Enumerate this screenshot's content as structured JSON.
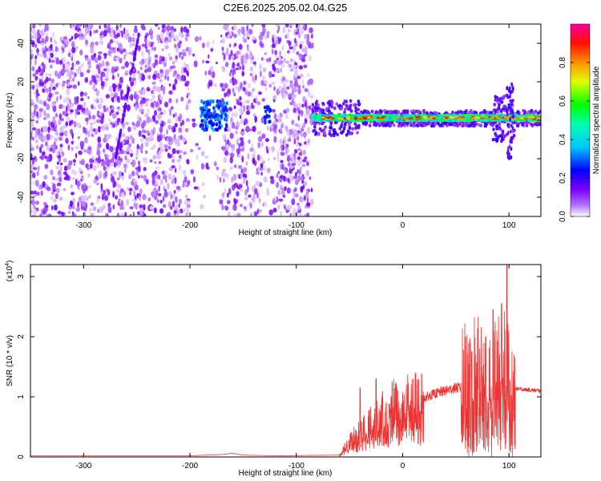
{
  "title": "C2E6.2025.205.02.04.G25",
  "chart_data": [
    {
      "type": "heatmap",
      "title": "C2E6.2025.205.02.04.G25",
      "xlabel": "Height of straight line (km)",
      "ylabel": "Frequency (Hz)",
      "xlim": [
        -350,
        130
      ],
      "ylim": [
        -50,
        50
      ],
      "xticks": [
        -300,
        -200,
        -100,
        0,
        100
      ],
      "yticks": [
        -40,
        -20,
        0,
        20,
        40
      ],
      "colorbar": {
        "label": "Normalized spectral amplitude",
        "range": [
          0,
          1
        ],
        "ticks": [
          0.0,
          0.2,
          0.4,
          0.6,
          0.8
        ],
        "colormap": [
          "#ffffff",
          "#8000ff",
          "#0000ff",
          "#00ffff",
          "#00ff00",
          "#ffff00",
          "#ff8000",
          "#ff0000",
          "#ff00ff"
        ]
      },
      "description_regions": [
        {
          "x": [
            -350,
            -85
          ],
          "y": [
            -50,
            50
          ],
          "amplitude": [
            0.02,
            0.15
          ]
        },
        {
          "x": [
            -190,
            -165
          ],
          "y": [
            -5,
            10
          ],
          "amplitude": [
            0.2,
            0.35
          ]
        },
        {
          "x": [
            -85,
            130
          ],
          "y": [
            -4,
            5
          ],
          "amplitude": [
            0.3,
            1.0
          ]
        }
      ]
    },
    {
      "type": "line",
      "xlabel": "Height of straight line (km)",
      "ylabel": "SNR (10 * v/v)",
      "yscale_label": "(x10",
      "yscale_exp": "4",
      "xlim": [
        -350,
        130
      ],
      "ylim": [
        0,
        3.2
      ],
      "xticks": [
        -300,
        -200,
        -100,
        0,
        100
      ],
      "yticks": [
        0,
        1,
        2,
        3
      ],
      "series_color": "#ee3333",
      "envelope": {
        "x": [
          -350,
          -200,
          -170,
          -160,
          -150,
          -120,
          -60,
          -50,
          -40,
          -30,
          -20,
          -10,
          0,
          10,
          20,
          30,
          40,
          50,
          60,
          70,
          80,
          85,
          90,
          95,
          100,
          103,
          108,
          130
        ],
        "y": [
          0.02,
          0.02,
          0.04,
          0.06,
          0.03,
          0.02,
          0.03,
          0.25,
          0.4,
          0.55,
          0.65,
          0.75,
          0.82,
          0.9,
          0.98,
          1.05,
          1.1,
          1.15,
          1.15,
          1.18,
          1.2,
          1.25,
          1.3,
          1.5,
          1.2,
          1.15,
          1.13,
          1.1
        ]
      },
      "peaks": [
        {
          "x": 98,
          "y": 3.2
        },
        {
          "x": 93,
          "y": 2.55
        },
        {
          "x": 85,
          "y": 2.45
        },
        {
          "x": 78,
          "y": 2.0
        },
        {
          "x": 65,
          "y": 1.75
        },
        {
          "x": -25,
          "y": 1.3
        },
        {
          "x": -40,
          "y": 1.15
        }
      ]
    }
  ]
}
